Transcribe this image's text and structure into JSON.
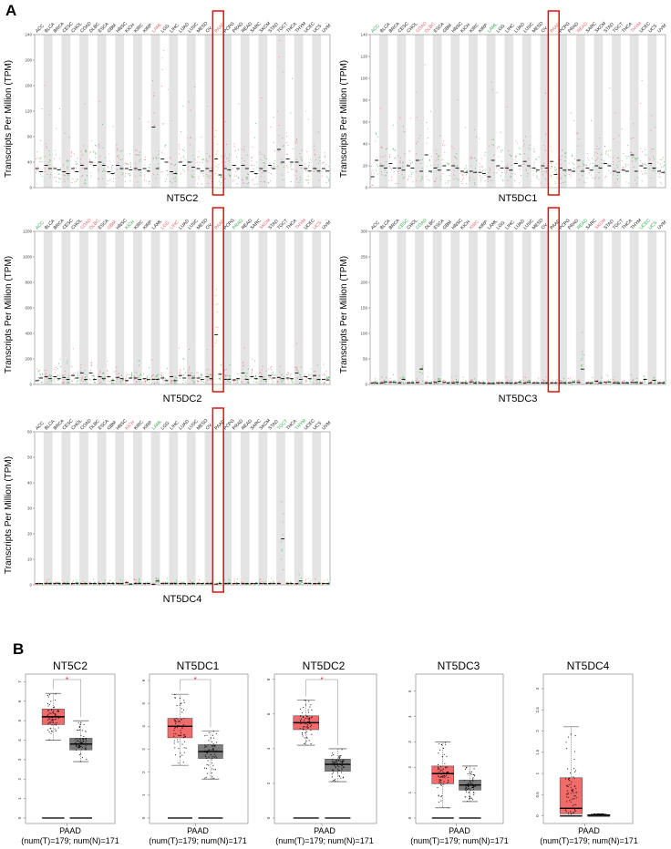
{
  "panel_labels": {
    "a": "A",
    "b": "B"
  },
  "y_axis_label": "Transcripts Per Million (TPM)",
  "cancer_types": [
    "ACC",
    "BLCA",
    "BRCA",
    "CESC",
    "CHOL",
    "COAD",
    "DLBC",
    "ESCA",
    "GBM",
    "HNSC",
    "KICH",
    "KIRC",
    "KIRP",
    "LAML",
    "LGG",
    "LIHC",
    "LUAD",
    "LUSC",
    "MESO",
    "OV",
    "PAAD",
    "PCPG",
    "PRAD",
    "READ",
    "SARC",
    "SKCM",
    "STAD",
    "TGCT",
    "THCA",
    "THYM",
    "UCEC",
    "UCS",
    "UVM"
  ],
  "highlight": "PAAD",
  "colors": {
    "red": "#e4606a",
    "green": "#2ea84c",
    "tumor_box": "#f26b6b",
    "normal_box": "#7c7c7c",
    "highlight_rect": "#e01010"
  },
  "chart_data": [
    {
      "type": "scatter",
      "title": "NT5C2",
      "ylim": [
        0,
        240
      ],
      "yticks": [
        0,
        40,
        80,
        120,
        160,
        200,
        240
      ],
      "label_colors": {
        "LAML": "red",
        "PAAD": "red"
      },
      "tumor_median": [
        30,
        35,
        30,
        25,
        30,
        35,
        40,
        40,
        25,
        35,
        30,
        30,
        30,
        95,
        45,
        25,
        40,
        40,
        30,
        30,
        45,
        30,
        35,
        35,
        25,
        30,
        35,
        60,
        45,
        40,
        30,
        30,
        30
      ],
      "normal_median": [
        25,
        30,
        28,
        22,
        25,
        30,
        35,
        35,
        22,
        30,
        28,
        28,
        26,
        30,
        40,
        22,
        35,
        32,
        26,
        26,
        20,
        28,
        30,
        30,
        22,
        26,
        30,
        40,
        40,
        35,
        26,
        26,
        26
      ]
    },
    {
      "type": "scatter",
      "title": "NT5DC1",
      "ylim": [
        0,
        140
      ],
      "yticks": [
        0,
        20,
        40,
        60,
        80,
        100,
        120,
        140
      ],
      "label_colors": {
        "ACC": "green",
        "COAD": "red",
        "DLBC": "red",
        "LAML": "green",
        "PAAD": "red",
        "READ": "red",
        "THYM": "red"
      },
      "tumor_median": [
        10,
        20,
        22,
        18,
        20,
        25,
        30,
        18,
        20,
        20,
        15,
        15,
        14,
        10,
        20,
        18,
        22,
        24,
        18,
        20,
        24,
        18,
        16,
        25,
        18,
        20,
        22,
        15,
        16,
        30,
        20,
        22,
        15
      ],
      "normal_median": [
        25,
        18,
        18,
        16,
        18,
        15,
        15,
        16,
        16,
        18,
        14,
        14,
        13,
        25,
        18,
        16,
        20,
        20,
        16,
        18,
        12,
        16,
        15,
        15,
        16,
        18,
        20,
        14,
        15,
        15,
        18,
        18,
        14
      ]
    },
    {
      "type": "scatter",
      "title": "NT5DC2",
      "ylim": [
        0,
        1200
      ],
      "yticks": [
        0,
        200,
        400,
        600,
        800,
        1000,
        1200
      ],
      "label_colors": {
        "ACC": "green",
        "COAD": "red",
        "DLBC": "red",
        "GBM": "red",
        "KICH": "green",
        "LGG": "red",
        "LIHC": "red",
        "PAAD": "red",
        "PRAD": "green",
        "SKCM": "red",
        "THYM": "red",
        "UCS": "red"
      },
      "tumor_median": [
        30,
        60,
        60,
        55,
        70,
        90,
        90,
        60,
        60,
        55,
        30,
        50,
        45,
        40,
        50,
        60,
        70,
        70,
        50,
        60,
        390,
        40,
        35,
        90,
        60,
        60,
        70,
        55,
        50,
        90,
        60,
        70,
        40
      ],
      "normal_median": [
        50,
        45,
        45,
        40,
        50,
        40,
        40,
        45,
        30,
        45,
        50,
        40,
        38,
        40,
        30,
        30,
        50,
        50,
        40,
        45,
        80,
        40,
        45,
        40,
        45,
        40,
        50,
        45,
        45,
        40,
        45,
        40,
        35
      ]
    },
    {
      "type": "scatter",
      "title": "NT5DC3",
      "ylim": [
        0,
        300
      ],
      "yticks": [
        0,
        50,
        100,
        150,
        200,
        250,
        300
      ],
      "label_colors": {
        "CESC": "green",
        "COAD": "green",
        "KIRC": "red",
        "READ": "green",
        "SKCM": "red",
        "UCEC": "green",
        "UCS": "green"
      },
      "tumor_median": [
        3,
        3,
        4,
        3,
        3,
        4,
        3,
        4,
        4,
        3,
        3,
        5,
        3,
        2,
        3,
        3,
        3,
        3,
        3,
        3,
        3,
        3,
        3,
        4,
        3,
        6,
        4,
        3,
        3,
        4,
        3,
        3,
        3
      ],
      "normal_median": [
        3,
        5,
        4,
        10,
        3,
        30,
        3,
        6,
        3,
        4,
        3,
        3,
        3,
        2,
        3,
        3,
        4,
        4,
        3,
        3,
        3,
        3,
        4,
        30,
        3,
        3,
        5,
        3,
        3,
        4,
        10,
        8,
        3
      ]
    },
    {
      "type": "scatter",
      "title": "NT5DC4",
      "ylim": [
        0,
        60
      ],
      "yticks": [
        0,
        10,
        20,
        30,
        40,
        50,
        60
      ],
      "label_colors": {
        "KICH": "red",
        "LAML": "green",
        "TGCT": "green",
        "THYM": "green"
      },
      "tumor_median": [
        0.5,
        0.5,
        0.5,
        0.5,
        0.5,
        0.5,
        0.5,
        0.5,
        0.5,
        0.5,
        0.8,
        0.5,
        0.5,
        0.2,
        0.5,
        0.5,
        0.5,
        0.5,
        0.5,
        0.5,
        0.3,
        0.5,
        0.5,
        0.5,
        0.5,
        0.5,
        0.5,
        0.5,
        0.5,
        0.5,
        0.5,
        0.5,
        0.5
      ],
      "normal_median": [
        0.5,
        0.5,
        0.5,
        0.5,
        0.5,
        0.5,
        0.5,
        0.5,
        0.5,
        0.5,
        0.3,
        0.5,
        0.5,
        1.5,
        0.5,
        0.5,
        0.5,
        0.5,
        0.5,
        0.5,
        0.5,
        0.5,
        0.5,
        0.5,
        0.5,
        0.5,
        0.5,
        18,
        0.5,
        1.5,
        0.5,
        0.5,
        0.5
      ]
    },
    {
      "type": "box",
      "title": "NT5C2",
      "xlabel": "PAAD",
      "subtitle": "(num(T)=179; num(N)=171",
      "ylim": [
        0,
        7.3
      ],
      "yticks": [
        0,
        1,
        2,
        3,
        4,
        5,
        6,
        7
      ],
      "significance": "*",
      "tumor": {
        "median": 5.2,
        "q1": 4.8,
        "q3": 5.6,
        "whisker_low": 4.0,
        "whisker_high": 6.4
      },
      "normal": {
        "median": 3.8,
        "q1": 3.5,
        "q3": 4.1,
        "whisker_low": 2.9,
        "whisker_high": 5.0
      }
    },
    {
      "type": "box",
      "title": "NT5DC1",
      "xlabel": "PAAD",
      "subtitle": "(num(T)=179; num(N)=171",
      "ylim": [
        0,
        6.2
      ],
      "yticks": [
        0,
        1,
        2,
        3,
        4,
        5,
        6
      ],
      "significance": "*",
      "tumor": {
        "median": 4.0,
        "q1": 3.5,
        "q3": 4.35,
        "whisker_low": 2.3,
        "whisker_high": 5.4
      },
      "normal": {
        "median": 2.9,
        "q1": 2.6,
        "q3": 3.2,
        "whisker_low": 1.7,
        "whisker_high": 3.8
      }
    },
    {
      "type": "box",
      "title": "NT5DC2",
      "xlabel": "PAAD",
      "subtitle": "(num(T)=179; num(N)=171",
      "ylim": [
        0,
        8.2
      ],
      "yticks": [
        0,
        2,
        4,
        6,
        8
      ],
      "significance": "*",
      "tumor": {
        "median": 5.5,
        "q1": 5.1,
        "q3": 5.9,
        "whisker_low": 4.2,
        "whisker_high": 6.8
      },
      "normal": {
        "median": 3.1,
        "q1": 2.7,
        "q3": 3.4,
        "whisker_low": 2.1,
        "whisker_high": 4.0
      }
    },
    {
      "type": "box",
      "title": "NT5DC3",
      "xlabel": "PAAD",
      "subtitle": "(num(T)=179; num(N)=171",
      "ylim": [
        0,
        5.6
      ],
      "yticks": [
        0,
        1,
        2,
        3,
        4,
        5
      ],
      "significance": "",
      "tumor": {
        "median": 1.75,
        "q1": 1.35,
        "q3": 2.05,
        "whisker_low": 0.4,
        "whisker_high": 3.0
      },
      "normal": {
        "median": 1.3,
        "q1": 1.1,
        "q3": 1.5,
        "whisker_low": 0.65,
        "whisker_high": 2.05
      }
    },
    {
      "type": "box",
      "title": "NT5DC4",
      "xlabel": "PAAD",
      "subtitle": "(num(T)=179; num(N)=171",
      "ylim": [
        -0.05,
        3.3
      ],
      "yticks": [
        0.0,
        0.5,
        1.0,
        1.5,
        2.0,
        2.5,
        3.0
      ],
      "significance": "",
      "tumor": {
        "median": 0.18,
        "q1": 0.05,
        "q3": 0.9,
        "whisker_low": 0.0,
        "whisker_high": 2.1
      },
      "normal": {
        "median": 0.02,
        "q1": 0.0,
        "q3": 0.03,
        "whisker_low": 0.0,
        "whisker_high": 0.05
      }
    }
  ]
}
